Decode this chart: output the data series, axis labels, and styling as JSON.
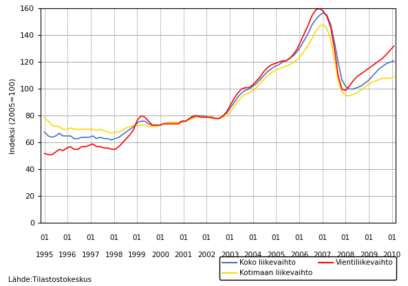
{
  "ylabel": "Indeksi (2005=100)",
  "ylim": [
    0,
    160
  ],
  "yticks": [
    0,
    20,
    40,
    60,
    80,
    100,
    120,
    140,
    160
  ],
  "legend": [
    {
      "label": "Koko liikevaihto",
      "color": "#4472C4"
    },
    {
      "label": "Kotimaan liikevaihto",
      "color": "#FFD700"
    },
    {
      "label": "Vientiliikevaihto",
      "color": "#FF0000"
    }
  ],
  "koko_liikevaihto": [
    68,
    65,
    64,
    65,
    67,
    65,
    65,
    65,
    63,
    63,
    64,
    64,
    64,
    65,
    63,
    64,
    63,
    63,
    62,
    63,
    64,
    66,
    68,
    70,
    72,
    75,
    76,
    76,
    74,
    73,
    73,
    73,
    74,
    75,
    75,
    75,
    75,
    76,
    76,
    78,
    79,
    80,
    80,
    80,
    79,
    78,
    78,
    78,
    80,
    82,
    86,
    90,
    94,
    97,
    99,
    100,
    102,
    104,
    107,
    110,
    113,
    115,
    117,
    118,
    120,
    121,
    123,
    125,
    128,
    132,
    137,
    142,
    148,
    152,
    155,
    157,
    155,
    148,
    135,
    120,
    107,
    102,
    100,
    100,
    101,
    102,
    104,
    106,
    109,
    112,
    115,
    117,
    119,
    120,
    121
  ],
  "kotimaan_liikevaihto": [
    79,
    76,
    73,
    72,
    72,
    70,
    70,
    71,
    70,
    70,
    70,
    70,
    70,
    70,
    69,
    70,
    69,
    68,
    67,
    68,
    68,
    69,
    71,
    72,
    73,
    73,
    73,
    73,
    72,
    72,
    72,
    73,
    74,
    75,
    75,
    75,
    75,
    75,
    76,
    77,
    78,
    79,
    79,
    79,
    79,
    78,
    78,
    78,
    79,
    80,
    83,
    87,
    91,
    94,
    96,
    97,
    99,
    101,
    104,
    107,
    110,
    112,
    114,
    115,
    116,
    117,
    118,
    120,
    122,
    125,
    129,
    133,
    138,
    143,
    147,
    148,
    145,
    137,
    122,
    106,
    98,
    95,
    95,
    96,
    97,
    99,
    101,
    103,
    105,
    106,
    107,
    108,
    108,
    108,
    109
  ],
  "vienti_liikevaihto": [
    52,
    51,
    51,
    53,
    55,
    54,
    56,
    57,
    55,
    55,
    57,
    57,
    58,
    59,
    57,
    57,
    56,
    56,
    55,
    55,
    57,
    60,
    63,
    66,
    70,
    77,
    80,
    79,
    76,
    73,
    73,
    73,
    74,
    74,
    74,
    74,
    74,
    76,
    76,
    78,
    80,
    80,
    79,
    79,
    79,
    79,
    78,
    78,
    80,
    83,
    88,
    93,
    97,
    100,
    101,
    101,
    103,
    106,
    109,
    113,
    116,
    118,
    119,
    120,
    121,
    121,
    123,
    126,
    130,
    136,
    142,
    148,
    155,
    159,
    160,
    158,
    154,
    146,
    130,
    110,
    100,
    99,
    102,
    106,
    109,
    111,
    113,
    115,
    117,
    119,
    121,
    123,
    126,
    129,
    132
  ],
  "source_label": "Lähde:Tilastostokeskus",
  "years": [
    1995,
    1996,
    1997,
    1998,
    1999,
    2000,
    2001,
    2002,
    2003,
    2004,
    2005,
    2006,
    2007,
    2008,
    2009,
    2010
  ]
}
